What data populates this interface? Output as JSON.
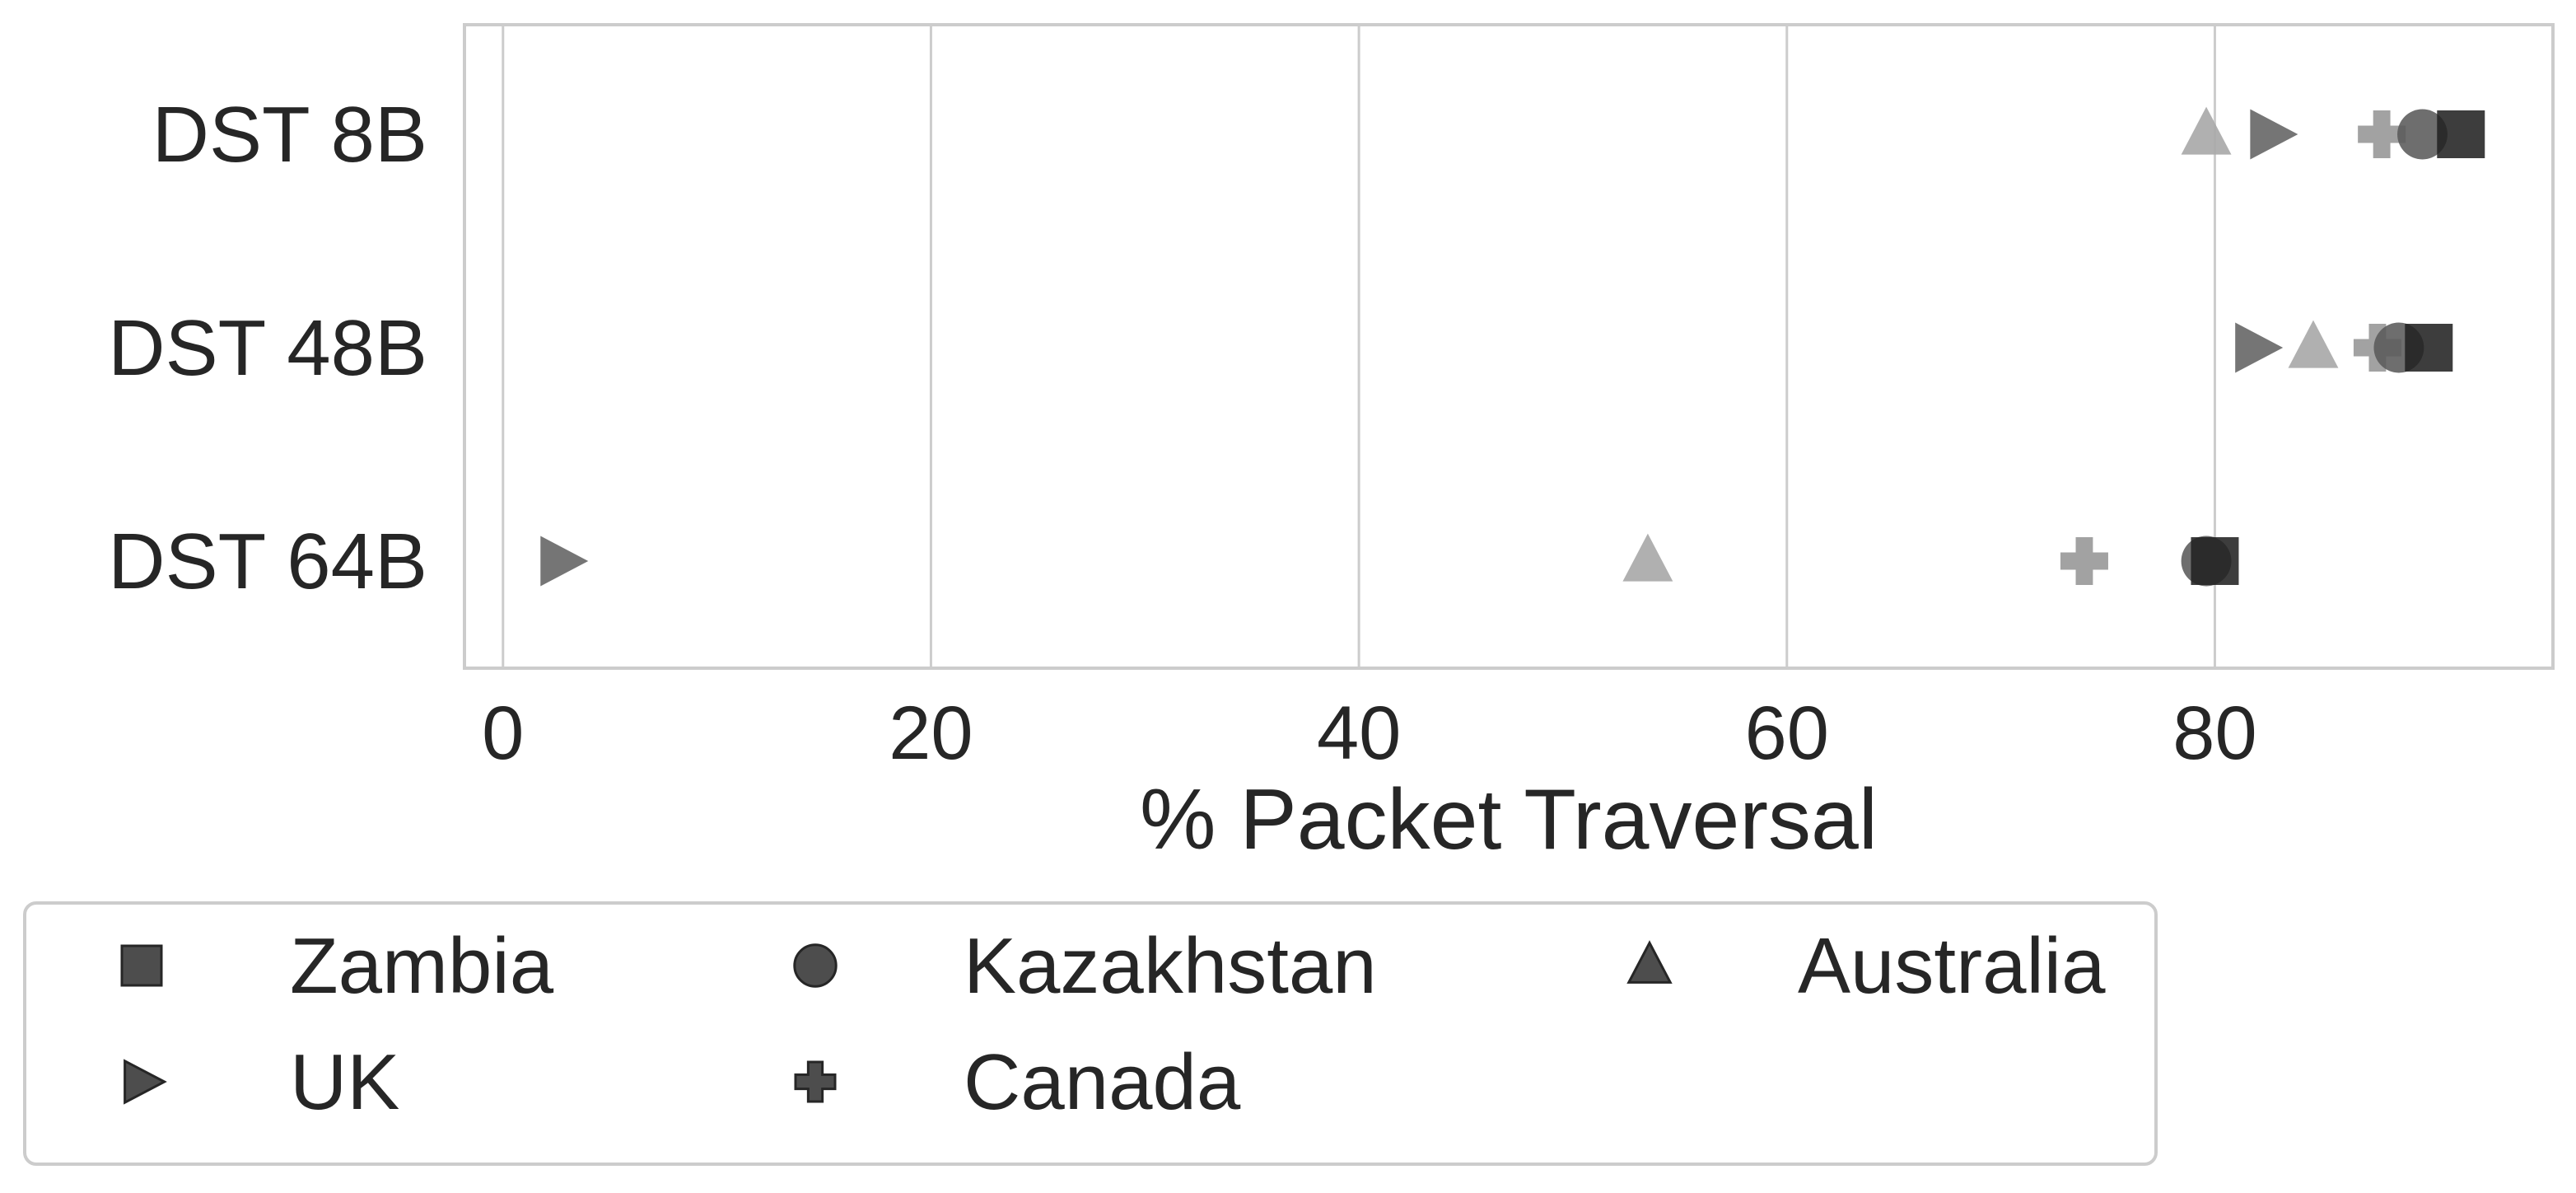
{
  "chart_data": {
    "type": "scatter",
    "categories": [
      "DST 8B",
      "DST 48B",
      "DST 64B"
    ],
    "xlabel": "% Packet Traversal",
    "ylabel": "",
    "xlim": [
      -1.8,
      95.8
    ],
    "xticks": [
      0,
      20,
      40,
      60,
      80
    ],
    "grid": "vertical",
    "legend_position": "bottom-left",
    "legend_columns": 3,
    "series": [
      {
        "name": "Zambia",
        "marker": "square",
        "color": "#222222",
        "opacity": 0.88,
        "values": [
          91.5,
          90.0,
          80.0
        ]
      },
      {
        "name": "Kazakhstan",
        "marker": "circle",
        "color": "#5a5a5a",
        "opacity": 0.88,
        "values": [
          89.7,
          88.6,
          79.6
        ]
      },
      {
        "name": "Australia",
        "marker": "triangle-up",
        "color": "#a9a9a9",
        "opacity": 0.92,
        "values": [
          79.6,
          84.6,
          53.5
        ]
      },
      {
        "name": "UK",
        "marker": "triangle-right",
        "color": "#6e6e6e",
        "opacity": 0.95,
        "values": [
          82.6,
          81.9,
          2.7
        ]
      },
      {
        "name": "Canada",
        "marker": "plus",
        "color": "#9a9a9a",
        "opacity": 0.92,
        "values": [
          87.8,
          87.6,
          73.9
        ]
      }
    ]
  }
}
